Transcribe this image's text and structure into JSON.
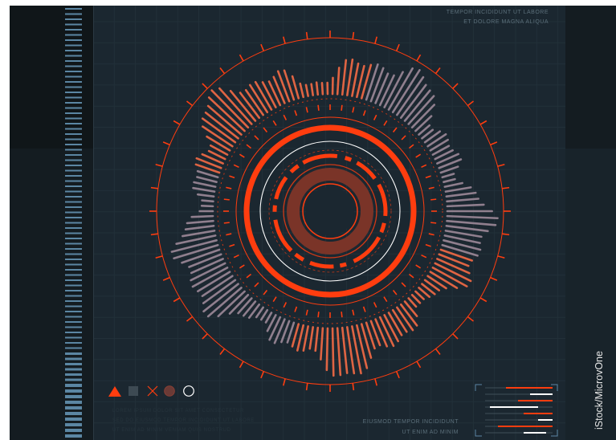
{
  "hud": {
    "top_right_line1": "TEMPOR INCIDIDUNT UT LABORE",
    "top_right_line2": "ET DOLORE MAGNA ALIQUA",
    "bottom_line1": "EIUSMOD TEMPOR INCIDIDUNT",
    "bottom_line2": "UT ENIM AD MINIM",
    "faint_line1": "LOREM IPSUM DOLOR SIT AMET CONSECTETUR",
    "faint_line2": "SED DO EIUSMOD TEMPOR INCIDIDUNT UT LABORE",
    "faint_line3": "UT ENIM AD MINIM VENIAM QUIS NOSTRUD"
  },
  "watermark": "iStock/MicrovOne",
  "icons": [
    "triangle-icon",
    "square-icon",
    "cross-icon",
    "hatched-circle-icon",
    "circle-outline-icon"
  ],
  "colors": {
    "background": "#1b2730",
    "accent": "#ff3d0f",
    "accent_dim": "#7a3428",
    "scale_blue": "#5b86a3",
    "white": "#ffffff"
  }
}
